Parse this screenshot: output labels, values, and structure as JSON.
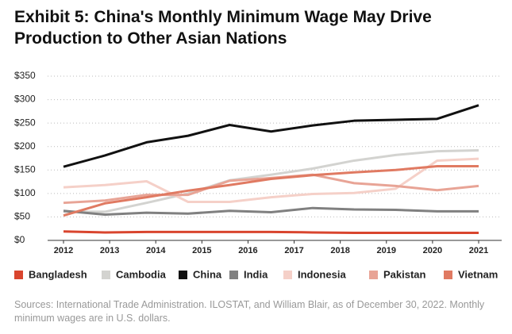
{
  "chart_data": {
    "type": "line",
    "title": "Exhibit 5: China's Monthly Minimum Wage May Drive Production to Other Asian Nations",
    "source": "Sources: International Trade Administration. ILOSTAT, and William Blair, as of December 30, 2022. Monthly minimum wages are in U.S. dollars.",
    "x": [
      2012,
      2012.9,
      2013.8,
      2014.7,
      2015.6,
      2016.5,
      2017.4,
      2018.3,
      2019.2,
      2020.1,
      2021
    ],
    "xlim": [
      2012,
      2021
    ],
    "xticks": [
      2012,
      2013,
      2014,
      2015,
      2016,
      2017,
      2018,
      2019,
      2020,
      2021
    ],
    "ylim": [
      0,
      350
    ],
    "yticks": [
      {
        "value": 0,
        "label": "$0"
      },
      {
        "value": 50,
        "label": "$50"
      },
      {
        "value": 100,
        "label": "$100"
      },
      {
        "value": 150,
        "label": "$150"
      },
      {
        "value": 200,
        "label": "$200"
      },
      {
        "value": 250,
        "label": "$250"
      },
      {
        "value": 300,
        "label": "$300"
      },
      {
        "value": 350,
        "label": "$350"
      }
    ],
    "grid": true,
    "legend": "bottom",
    "series": [
      {
        "name": "Bangladesh",
        "color": "#d9452e",
        "values": [
          19,
          17,
          18,
          18,
          18,
          18,
          17,
          16,
          16,
          16,
          16
        ]
      },
      {
        "name": "Cambodia",
        "color": "#d3d3d0",
        "values": [
          61,
          61,
          80,
          100,
          128,
          140,
          153,
          170,
          182,
          190,
          192
        ]
      },
      {
        "name": "China",
        "color": "#111111",
        "values": [
          157,
          181,
          209,
          223,
          246,
          232,
          245,
          255,
          257,
          259,
          288
        ]
      },
      {
        "name": "India",
        "color": "#808080",
        "values": [
          63,
          55,
          59,
          57,
          63,
          60,
          69,
          66,
          65,
          62,
          62
        ]
      },
      {
        "name": "Indonesia",
        "color": "#f5d0c8",
        "values": [
          113,
          118,
          126,
          82,
          82,
          92,
          99,
          101,
          110,
          170,
          174
        ]
      },
      {
        "name": "Pakistan",
        "color": "#e8a496",
        "values": [
          80,
          85,
          97,
          97,
          127,
          133,
          140,
          122,
          116,
          107,
          116
        ]
      },
      {
        "name": "Vietnam",
        "color": "#e07a62",
        "values": [
          53,
          79,
          92,
          106,
          118,
          131,
          139,
          145,
          150,
          158,
          158
        ]
      }
    ]
  }
}
